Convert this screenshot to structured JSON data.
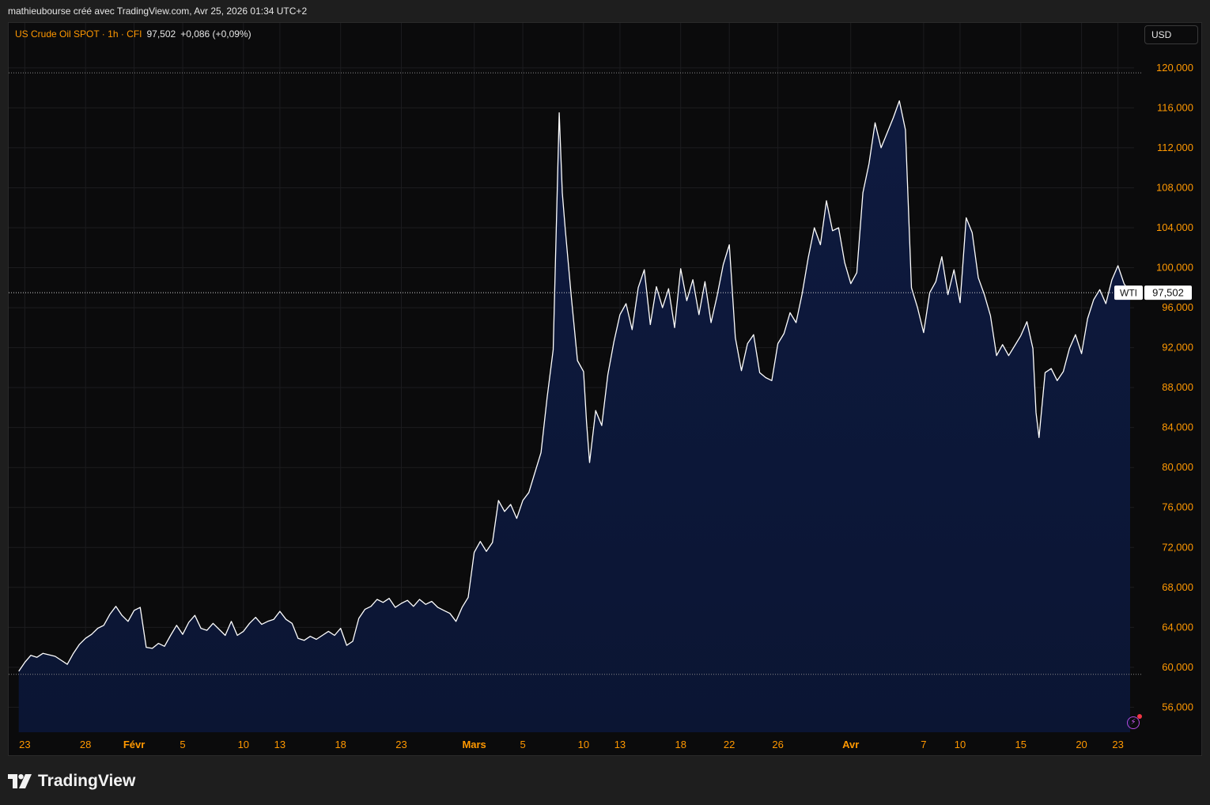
{
  "caption": "mathieubourse créé avec TradingView.com, Avr 25, 2026 01:34 UTC+2",
  "legend": {
    "symbol": "US Crude Oil SPOT · 1h · CFI",
    "price": "97,502",
    "change": "+0,086 (+0,09%)"
  },
  "currency": "USD",
  "brand": "TradingView",
  "icons": {
    "brand_logo": "tradingview-logo-icon",
    "bolt": "lightning-icon"
  },
  "colors": {
    "line": "#ffffff",
    "area_top": "#0e1a3f",
    "area_bottom": "#0b1533",
    "axis_label": "#ff9800",
    "legend_symbol": "#ff9800",
    "background": "#0b0b0c"
  },
  "chart_data": {
    "type": "area",
    "xlabel": "",
    "ylabel": "",
    "series_label": "WTI",
    "last_price": 97.502,
    "last_price_label": "97,502",
    "grid": true,
    "ylim": [
      53.5,
      124.5
    ],
    "xlim": [
      "2026-01-22",
      "2026-04-24"
    ],
    "y_ticks": [
      {
        "value": 120,
        "label": "120,000"
      },
      {
        "value": 116,
        "label": "116,000"
      },
      {
        "value": 112,
        "label": "112,000"
      },
      {
        "value": 108,
        "label": "108,000"
      },
      {
        "value": 104,
        "label": "104,000"
      },
      {
        "value": 100,
        "label": "100,000"
      },
      {
        "value": 96,
        "label": "96,000"
      },
      {
        "value": 92,
        "label": "92,000"
      },
      {
        "value": 88,
        "label": "88,000"
      },
      {
        "value": 84,
        "label": "84,000"
      },
      {
        "value": 80,
        "label": "80,000"
      },
      {
        "value": 76,
        "label": "76,000"
      },
      {
        "value": 72,
        "label": "72,000"
      },
      {
        "value": 68,
        "label": "68,000"
      },
      {
        "value": 64,
        "label": "64,000"
      },
      {
        "value": 60,
        "label": "60,000"
      },
      {
        "value": 56,
        "label": "56,000"
      }
    ],
    "x_ticks": [
      {
        "date": "2026-01-23",
        "label": "23"
      },
      {
        "date": "2026-01-28",
        "label": "28"
      },
      {
        "date": "2026-02-01",
        "label": "Févr",
        "bold": true
      },
      {
        "date": "2026-02-05",
        "label": "5"
      },
      {
        "date": "2026-02-10",
        "label": "10"
      },
      {
        "date": "2026-02-13",
        "label": "13"
      },
      {
        "date": "2026-02-18",
        "label": "18"
      },
      {
        "date": "2026-02-23",
        "label": "23"
      },
      {
        "date": "2026-03-01",
        "label": "Mars",
        "bold": true
      },
      {
        "date": "2026-03-05",
        "label": "5"
      },
      {
        "date": "2026-03-10",
        "label": "10"
      },
      {
        "date": "2026-03-13",
        "label": "13"
      },
      {
        "date": "2026-03-18",
        "label": "18"
      },
      {
        "date": "2026-03-22",
        "label": "22"
      },
      {
        "date": "2026-03-26",
        "label": "26"
      },
      {
        "date": "2026-04-01",
        "label": "Avr",
        "bold": true
      },
      {
        "date": "2026-04-07",
        "label": "7"
      },
      {
        "date": "2026-04-10",
        "label": "10"
      },
      {
        "date": "2026-04-15",
        "label": "15"
      },
      {
        "date": "2026-04-20",
        "label": "20"
      },
      {
        "date": "2026-04-23",
        "label": "23"
      }
    ],
    "points": [
      [
        "2026-01-22 12:00",
        59.6
      ],
      [
        "2026-01-23 00:00",
        60.5
      ],
      [
        "2026-01-23 12:00",
        61.2
      ],
      [
        "2026-01-24 00:00",
        61.0
      ],
      [
        "2026-01-24 12:00",
        61.4
      ],
      [
        "2026-01-25 12:00",
        61.1
      ],
      [
        "2026-01-26 00:00",
        60.7
      ],
      [
        "2026-01-26 12:00",
        60.3
      ],
      [
        "2026-01-27 00:00",
        61.4
      ],
      [
        "2026-01-27 12:00",
        62.3
      ],
      [
        "2026-01-28 00:00",
        62.9
      ],
      [
        "2026-01-28 12:00",
        63.3
      ],
      [
        "2026-01-29 00:00",
        63.9
      ],
      [
        "2026-01-29 12:00",
        64.2
      ],
      [
        "2026-01-30 00:00",
        65.3
      ],
      [
        "2026-01-30 12:00",
        66.1
      ],
      [
        "2026-01-31 00:00",
        65.2
      ],
      [
        "2026-01-31 12:00",
        64.6
      ],
      [
        "2026-02-01 00:00",
        65.7
      ],
      [
        "2026-02-01 12:00",
        66.0
      ],
      [
        "2026-02-02 00:00",
        62.0
      ],
      [
        "2026-02-02 12:00",
        61.9
      ],
      [
        "2026-02-03 00:00",
        62.4
      ],
      [
        "2026-02-03 12:00",
        62.1
      ],
      [
        "2026-02-04 00:00",
        63.2
      ],
      [
        "2026-02-04 12:00",
        64.2
      ],
      [
        "2026-02-05 00:00",
        63.3
      ],
      [
        "2026-02-05 12:00",
        64.5
      ],
      [
        "2026-02-06 00:00",
        65.2
      ],
      [
        "2026-02-06 12:00",
        63.9
      ],
      [
        "2026-02-07 00:00",
        63.7
      ],
      [
        "2026-02-07 12:00",
        64.4
      ],
      [
        "2026-02-08 12:00",
        63.2
      ],
      [
        "2026-02-09 00:00",
        64.6
      ],
      [
        "2026-02-09 12:00",
        63.2
      ],
      [
        "2026-02-10 00:00",
        63.6
      ],
      [
        "2026-02-10 12:00",
        64.4
      ],
      [
        "2026-02-11 00:00",
        65.0
      ],
      [
        "2026-02-11 12:00",
        64.3
      ],
      [
        "2026-02-12 00:00",
        64.6
      ],
      [
        "2026-02-12 12:00",
        64.8
      ],
      [
        "2026-02-13 00:00",
        65.6
      ],
      [
        "2026-02-13 12:00",
        64.8
      ],
      [
        "2026-02-14 00:00",
        64.4
      ],
      [
        "2026-02-14 12:00",
        62.9
      ],
      [
        "2026-02-15 00:00",
        62.7
      ],
      [
        "2026-02-15 12:00",
        63.1
      ],
      [
        "2026-02-16 00:00",
        62.8
      ],
      [
        "2026-02-16 12:00",
        63.2
      ],
      [
        "2026-02-17 00:00",
        63.6
      ],
      [
        "2026-02-17 12:00",
        63.2
      ],
      [
        "2026-02-18 00:00",
        63.9
      ],
      [
        "2026-02-18 12:00",
        62.2
      ],
      [
        "2026-02-19 00:00",
        62.6
      ],
      [
        "2026-02-19 12:00",
        64.9
      ],
      [
        "2026-02-20 00:00",
        65.8
      ],
      [
        "2026-02-20 12:00",
        66.1
      ],
      [
        "2026-02-21 00:00",
        66.8
      ],
      [
        "2026-02-21 12:00",
        66.5
      ],
      [
        "2026-02-22 00:00",
        66.9
      ],
      [
        "2026-02-22 12:00",
        66.0
      ],
      [
        "2026-02-23 00:00",
        66.4
      ],
      [
        "2026-02-23 12:00",
        66.7
      ],
      [
        "2026-02-24 00:00",
        66.1
      ],
      [
        "2026-02-24 12:00",
        66.8
      ],
      [
        "2026-02-25 00:00",
        66.3
      ],
      [
        "2026-02-25 12:00",
        66.6
      ],
      [
        "2026-02-26 00:00",
        66.0
      ],
      [
        "2026-02-26 12:00",
        65.7
      ],
      [
        "2026-02-27 00:00",
        65.4
      ],
      [
        "2026-02-27 12:00",
        64.6
      ],
      [
        "2026-02-28 00:00",
        66.0
      ],
      [
        "2026-02-28 12:00",
        67.0
      ],
      [
        "2026-03-01 00:00",
        71.5
      ],
      [
        "2026-03-01 12:00",
        72.6
      ],
      [
        "2026-03-02 00:00",
        71.6
      ],
      [
        "2026-03-02 12:00",
        72.5
      ],
      [
        "2026-03-03 00:00",
        76.7
      ],
      [
        "2026-03-03 12:00",
        75.6
      ],
      [
        "2026-03-04 00:00",
        76.3
      ],
      [
        "2026-03-04 12:00",
        74.9
      ],
      [
        "2026-03-05 00:00",
        76.7
      ],
      [
        "2026-03-05 12:00",
        77.5
      ],
      [
        "2026-03-06 00:00",
        79.5
      ],
      [
        "2026-03-06 12:00",
        81.5
      ],
      [
        "2026-03-07 00:00",
        87.0
      ],
      [
        "2026-03-07 12:00",
        91.8
      ],
      [
        "2026-03-08 00:00",
        115.5
      ],
      [
        "2026-03-08 06:00",
        107.5
      ],
      [
        "2026-03-08 12:00",
        103.8
      ],
      [
        "2026-03-09 00:00",
        97.0
      ],
      [
        "2026-03-09 12:00",
        90.7
      ],
      [
        "2026-03-10 00:00",
        89.6
      ],
      [
        "2026-03-10 06:00",
        84.5
      ],
      [
        "2026-03-10 12:00",
        80.5
      ],
      [
        "2026-03-11 00:00",
        85.7
      ],
      [
        "2026-03-11 12:00",
        84.2
      ],
      [
        "2026-03-12 00:00",
        89.3
      ],
      [
        "2026-03-12 12:00",
        92.6
      ],
      [
        "2026-03-13 00:00",
        95.3
      ],
      [
        "2026-03-13 12:00",
        96.4
      ],
      [
        "2026-03-14 00:00",
        93.8
      ],
      [
        "2026-03-14 12:00",
        98.0
      ],
      [
        "2026-03-15 00:00",
        99.8
      ],
      [
        "2026-03-15 12:00",
        94.3
      ],
      [
        "2026-03-16 00:00",
        98.1
      ],
      [
        "2026-03-16 12:00",
        96.0
      ],
      [
        "2026-03-17 00:00",
        97.9
      ],
      [
        "2026-03-17 12:00",
        94.0
      ],
      [
        "2026-03-18 00:00",
        99.9
      ],
      [
        "2026-03-18 12:00",
        96.7
      ],
      [
        "2026-03-19 00:00",
        98.8
      ],
      [
        "2026-03-19 12:00",
        95.3
      ],
      [
        "2026-03-20 00:00",
        98.6
      ],
      [
        "2026-03-20 12:00",
        94.5
      ],
      [
        "2026-03-21 00:00",
        97.2
      ],
      [
        "2026-03-21 12:00",
        100.3
      ],
      [
        "2026-03-22 00:00",
        102.3
      ],
      [
        "2026-03-22 12:00",
        93.0
      ],
      [
        "2026-03-23 00:00",
        89.7
      ],
      [
        "2026-03-23 12:00",
        92.4
      ],
      [
        "2026-03-24 00:00",
        93.3
      ],
      [
        "2026-03-24 12:00",
        89.5
      ],
      [
        "2026-03-25 00:00",
        89.0
      ],
      [
        "2026-03-25 12:00",
        88.7
      ],
      [
        "2026-03-26 00:00",
        92.4
      ],
      [
        "2026-03-26 12:00",
        93.4
      ],
      [
        "2026-03-27 00:00",
        95.5
      ],
      [
        "2026-03-27 12:00",
        94.5
      ],
      [
        "2026-03-28 00:00",
        97.4
      ],
      [
        "2026-03-28 12:00",
        101.0
      ],
      [
        "2026-03-29 00:00",
        104.0
      ],
      [
        "2026-03-29 12:00",
        102.3
      ],
      [
        "2026-03-30 00:00",
        106.7
      ],
      [
        "2026-03-30 12:00",
        103.7
      ],
      [
        "2026-03-31 00:00",
        104.0
      ],
      [
        "2026-03-31 12:00",
        100.5
      ],
      [
        "2026-04-01 00:00",
        98.4
      ],
      [
        "2026-04-01 12:00",
        99.5
      ],
      [
        "2026-04-02 00:00",
        107.5
      ],
      [
        "2026-04-02 12:00",
        110.4
      ],
      [
        "2026-04-03 00:00",
        114.5
      ],
      [
        "2026-04-03 12:00",
        112.0
      ],
      [
        "2026-04-04 00:00",
        113.5
      ],
      [
        "2026-04-04 12:00",
        115.0
      ],
      [
        "2026-04-05 00:00",
        116.7
      ],
      [
        "2026-04-05 12:00",
        113.8
      ],
      [
        "2026-04-06 00:00",
        98.0
      ],
      [
        "2026-04-06 12:00",
        96.0
      ],
      [
        "2026-04-07 00:00",
        93.5
      ],
      [
        "2026-04-07 12:00",
        97.5
      ],
      [
        "2026-04-08 00:00",
        98.6
      ],
      [
        "2026-04-08 12:00",
        101.1
      ],
      [
        "2026-04-09 00:00",
        97.3
      ],
      [
        "2026-04-09 12:00",
        99.8
      ],
      [
        "2026-04-10 00:00",
        96.5
      ],
      [
        "2026-04-10 12:00",
        105.0
      ],
      [
        "2026-04-11 00:00",
        103.5
      ],
      [
        "2026-04-11 12:00",
        99.0
      ],
      [
        "2026-04-12 00:00",
        97.3
      ],
      [
        "2026-04-12 12:00",
        95.2
      ],
      [
        "2026-04-13 00:00",
        91.2
      ],
      [
        "2026-04-13 12:00",
        92.3
      ],
      [
        "2026-04-14 00:00",
        91.2
      ],
      [
        "2026-04-14 12:00",
        92.2
      ],
      [
        "2026-04-15 00:00",
        93.2
      ],
      [
        "2026-04-15 12:00",
        94.6
      ],
      [
        "2026-04-16 00:00",
        91.9
      ],
      [
        "2026-04-16 06:00",
        85.5
      ],
      [
        "2026-04-16 12:00",
        83.0
      ],
      [
        "2026-04-17 00:00",
        89.5
      ],
      [
        "2026-04-17 12:00",
        89.9
      ],
      [
        "2026-04-18 00:00",
        88.7
      ],
      [
        "2026-04-18 12:00",
        89.6
      ],
      [
        "2026-04-19 00:00",
        91.9
      ],
      [
        "2026-04-19 12:00",
        93.3
      ],
      [
        "2026-04-20 00:00",
        91.4
      ],
      [
        "2026-04-20 12:00",
        94.9
      ],
      [
        "2026-04-21 00:00",
        96.8
      ],
      [
        "2026-04-21 12:00",
        97.8
      ],
      [
        "2026-04-22 00:00",
        96.4
      ],
      [
        "2026-04-22 12:00",
        98.8
      ],
      [
        "2026-04-23 00:00",
        100.2
      ],
      [
        "2026-04-23 12:00",
        98.4
      ],
      [
        "2026-04-24 00:00",
        97.502
      ]
    ]
  }
}
